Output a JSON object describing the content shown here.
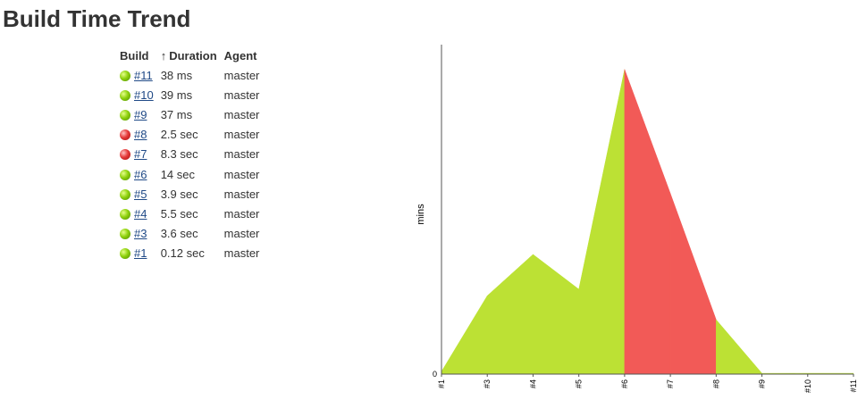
{
  "page": {
    "title": "Build Time Trend"
  },
  "table": {
    "headers": {
      "build": "Build",
      "sort_arrow": "↑",
      "duration": "Duration",
      "agent": "Agent"
    },
    "rows": [
      {
        "build": "#11",
        "duration": "38 ms",
        "agent": "master",
        "status": "success"
      },
      {
        "build": "#10",
        "duration": "39 ms",
        "agent": "master",
        "status": "success"
      },
      {
        "build": "#9",
        "duration": "37 ms",
        "agent": "master",
        "status": "success"
      },
      {
        "build": "#8",
        "duration": "2.5 sec",
        "agent": "master",
        "status": "failure"
      },
      {
        "build": "#7",
        "duration": "8.3 sec",
        "agent": "master",
        "status": "failure"
      },
      {
        "build": "#6",
        "duration": "14 sec",
        "agent": "master",
        "status": "success"
      },
      {
        "build": "#5",
        "duration": "3.9 sec",
        "agent": "master",
        "status": "success"
      },
      {
        "build": "#4",
        "duration": "5.5 sec",
        "agent": "master",
        "status": "success"
      },
      {
        "build": "#3",
        "duration": "3.6 sec",
        "agent": "master",
        "status": "success"
      },
      {
        "build": "#1",
        "duration": "0.12 sec",
        "agent": "master",
        "status": "success"
      }
    ]
  },
  "colors": {
    "success": "#bce134",
    "failure": "#f25a57",
    "link": "#204a87"
  },
  "chart_data": {
    "type": "area",
    "ylabel": "mins",
    "y_tick": "0",
    "categories": [
      "#1",
      "#3",
      "#4",
      "#5",
      "#6",
      "#7",
      "#8",
      "#9",
      "#10",
      "#11"
    ],
    "values_sec": [
      0.12,
      3.6,
      5.5,
      3.9,
      14,
      8.3,
      2.5,
      0.037,
      0.039,
      0.038
    ],
    "status": [
      "success",
      "success",
      "success",
      "success",
      "success",
      "failure",
      "failure",
      "success",
      "success",
      "success"
    ]
  }
}
